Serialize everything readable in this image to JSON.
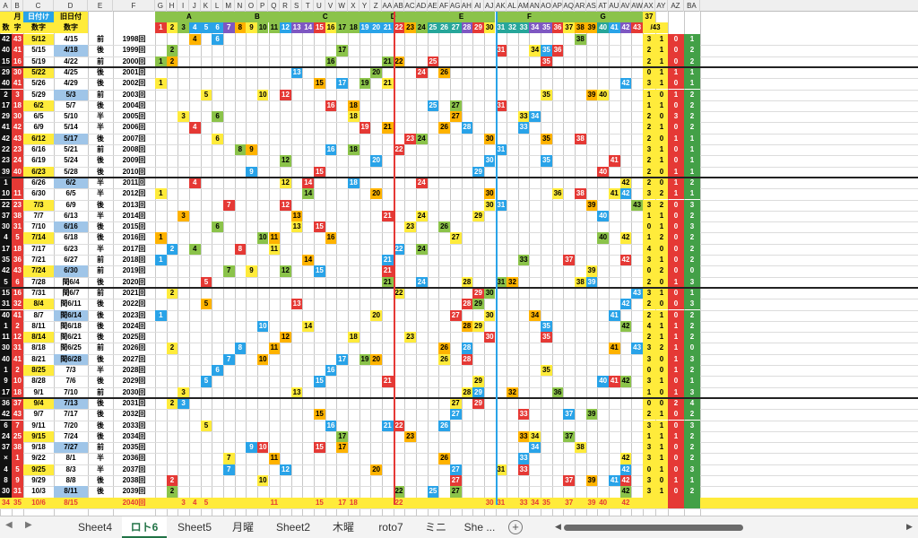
{
  "sheet": {
    "col_letters": [
      "A",
      "B",
      "C",
      "D",
      "E",
      "F",
      "G",
      "H",
      "I",
      "J",
      "K",
      "L",
      "M",
      "N",
      "O",
      "P",
      "Q",
      "R",
      "S",
      "T",
      "U",
      "V",
      "W",
      "X",
      "Y",
      "Z",
      "AA",
      "AB",
      "AC",
      "AD",
      "AE",
      "AF",
      "AG",
      "AH",
      "AI",
      "AJ",
      "AK",
      "AL",
      "AM",
      "AN",
      "AO",
      "AP",
      "AQ",
      "AR",
      "AS",
      "AT",
      "AU",
      "AV",
      "AW",
      "AX",
      "AY",
      "AZ",
      "BA"
    ],
    "header_row1": {
      "month": "月",
      "date": "日付け",
      "old_date": "旧日付",
      "group_A": "A",
      "group_B": "B",
      "group_C": "C",
      "group_D": "D",
      "group_E": "E",
      "group_F": "F",
      "group_G": "G",
      "ay_37": "37"
    },
    "header_row2": {
      "num": "数",
      "char": "字",
      "num_label": "数字",
      "old_num_label": "数字",
      "ay_43": "/43"
    },
    "numbers": [
      "1",
      "2",
      "3",
      "4",
      "5",
      "6",
      "7",
      "8",
      "9",
      "10",
      "11",
      "12",
      "13",
      "14",
      "15",
      "16",
      "17",
      "18",
      "19",
      "20",
      "21",
      "22",
      "23",
      "24",
      "25",
      "26",
      "27",
      "28",
      "29",
      "30",
      "31",
      "32",
      "33",
      "34",
      "35",
      "36",
      "37",
      "38",
      "39",
      "40",
      "41",
      "42",
      "43"
    ],
    "rows": [
      {
        "a": "42",
        "b": "43",
        "date": "5/12",
        "old": "4/15",
        "half": "前",
        "draw": "1998回",
        "cells": {
          "4": "4",
          "6": "6",
          "38": "38"
        },
        "stats": [
          "3",
          "1",
          "0",
          "1"
        ]
      },
      {
        "a": "40",
        "b": "41",
        "date": "5/15",
        "old": "4/18",
        "half": "後",
        "draw": "1999回",
        "cells": {
          "2": "2",
          "17": "17",
          "31": "31",
          "34": "34",
          "35": "35",
          "36": "36"
        },
        "stats": [
          "2",
          "1",
          "0",
          "2"
        ]
      },
      {
        "a": "15",
        "b": "16",
        "date": "5/19",
        "old": "4/22",
        "half": "前",
        "draw": "2000回",
        "cells": {
          "1": "1",
          "2": "2",
          "16": "16",
          "21": "21",
          "22": "22",
          "25": "25",
          "35": "35"
        },
        "stats": [
          "2",
          "1",
          "0",
          "2"
        ]
      },
      {
        "a": "29",
        "b": "30",
        "date": "5/22",
        "old": "4/25",
        "half": "後",
        "draw": "2001回",
        "cells": {
          "13": "13",
          "20": "20",
          "24": "24",
          "26": "26"
        },
        "stats": [
          "0",
          "1",
          "1",
          "1"
        ]
      },
      {
        "a": "40",
        "b": "41",
        "date": "5/26",
        "old": "4/29",
        "half": "後",
        "draw": "2002回",
        "cells": {
          "1": "1",
          "15": "15",
          "17": "17",
          "19": "19",
          "21": "21",
          "42": "42"
        },
        "stats": [
          "3",
          "1",
          "0",
          "1"
        ]
      },
      {
        "a": "2",
        "b": "3",
        "date": "5/29",
        "old": "5/3",
        "half": "前",
        "draw": "2003回",
        "cells": {
          "5": "5",
          "10": "10",
          "12": "12",
          "35": "35",
          "39": "39",
          "40": "40"
        },
        "stats": [
          "1",
          "0",
          "1",
          "2"
        ]
      },
      {
        "a": "17",
        "b": "18",
        "date": "6/2",
        "old": "5/7",
        "half": "後",
        "draw": "2004回",
        "cells": {
          "16": "16",
          "18": "18",
          "25": "25",
          "27": "27",
          "31": "31"
        },
        "stats": [
          "1",
          "1",
          "0",
          "2"
        ]
      },
      {
        "a": "29",
        "b": "30",
        "date": "6/5",
        "old": "5/10",
        "half": "半",
        "draw": "2005回",
        "cells": {
          "3": "3",
          "6": "6",
          "18": "18",
          "27": "27",
          "33": "33",
          "34": "34"
        },
        "stats": [
          "2",
          "0",
          "3",
          "2"
        ]
      },
      {
        "a": "41",
        "b": "42",
        "date": "6/9",
        "old": "5/14",
        "half": "半",
        "draw": "2006回",
        "cells": {
          "4": "4",
          "19": "19",
          "21": "21",
          "26": "26",
          "28": "28",
          "33": "33"
        },
        "stats": [
          "2",
          "1",
          "0",
          "2"
        ]
      },
      {
        "a": "42",
        "b": "43",
        "date": "6/12",
        "old": "5/17",
        "half": "後",
        "draw": "2007回",
        "cells": {
          "6": "6",
          "23": "23",
          "24": "24",
          "30": "30",
          "35": "35",
          "38": "38"
        },
        "stats": [
          "2",
          "0",
          "1",
          "1"
        ]
      },
      {
        "a": "22",
        "b": "23",
        "date": "6/16",
        "old": "5/21",
        "half": "前",
        "draw": "2008回",
        "cells": {
          "8": "8",
          "9": "9",
          "16": "16",
          "18": "18",
          "22": "22",
          "31": "31"
        },
        "stats": [
          "3",
          "1",
          "0",
          "1"
        ]
      },
      {
        "a": "23",
        "b": "24",
        "date": "6/19",
        "old": "5/24",
        "half": "後",
        "draw": "2009回",
        "cells": {
          "12": "12",
          "20": "20",
          "30": "30",
          "35": "35",
          "41": "41"
        },
        "stats": [
          "2",
          "1",
          "0",
          "1"
        ]
      },
      {
        "a": "39",
        "b": "40",
        "date": "6/23",
        "old": "5/28",
        "half": "後",
        "draw": "2010回",
        "cells": {
          "9": "9",
          "15": "15",
          "29": "29",
          "40": "40"
        },
        "stats": [
          "2",
          "0",
          "1",
          "1"
        ]
      },
      {
        "a": "1",
        "b": "",
        "date": "6/26",
        "old": "6/2",
        "half": "半",
        "draw": "2011回",
        "cells": {
          "4": "4",
          "12": "12",
          "14": "14",
          "18": "18",
          "24": "24",
          "42": "42"
        },
        "stats": [
          "2",
          "0",
          "1",
          "2"
        ]
      },
      {
        "a": "10",
        "b": "11",
        "date": "6/30",
        "old": "6/5",
        "half": "半",
        "draw": "2012回",
        "cells": {
          "1": "1",
          "14": "14",
          "20": "20",
          "30": "30",
          "36": "36",
          "38": "38",
          "41": "41",
          "42": "42"
        },
        "stats": [
          "3",
          "2",
          "1",
          "1"
        ]
      },
      {
        "a": "22",
        "b": "23",
        "date": "7/3",
        "old": "6/9",
        "half": "後",
        "draw": "2013回",
        "cells": {
          "7": "7",
          "12": "12",
          "30": "30",
          "31": "31",
          "39": "39",
          "43": "43"
        },
        "stats": [
          "3",
          "2",
          "0",
          "3"
        ]
      },
      {
        "a": "37",
        "b": "38",
        "date": "7/7",
        "old": "6/13",
        "half": "半",
        "draw": "2014回",
        "cells": {
          "3": "3",
          "13": "13",
          "21": "21",
          "24": "24",
          "29": "29",
          "40": "40"
        },
        "stats": [
          "1",
          "1",
          "0",
          "2"
        ]
      },
      {
        "a": "30",
        "b": "31",
        "date": "7/10",
        "old": "6/16",
        "half": "後",
        "draw": "2015回",
        "cells": {
          "6": "6",
          "13": "13",
          "15": "15",
          "23": "23",
          "26": "26"
        },
        "stats": [
          "0",
          "1",
          "0",
          "3"
        ]
      },
      {
        "a": "4",
        "b": "5",
        "date": "7/14",
        "old": "6/18",
        "half": "後",
        "draw": "2016回",
        "cells": {
          "1": "1",
          "10": "10",
          "11": "11",
          "16": "16",
          "27": "27",
          "40": "40",
          "42": "42"
        },
        "stats": [
          "1",
          "2",
          "0",
          "2"
        ]
      },
      {
        "a": "17",
        "b": "18",
        "date": "7/17",
        "old": "6/23",
        "half": "半",
        "draw": "2017回",
        "cells": {
          "2": "2",
          "4": "4",
          "8": "8",
          "11": "11",
          "22": "22",
          "24": "24"
        },
        "stats": [
          "4",
          "0",
          "0",
          "2"
        ]
      },
      {
        "a": "35",
        "b": "36",
        "date": "7/21",
        "old": "6/27",
        "half": "前",
        "draw": "2018回",
        "cells": {
          "1": "1",
          "14": "14",
          "21": "21",
          "33": "33",
          "37": "37",
          "42": "42"
        },
        "stats": [
          "3",
          "1",
          "0",
          "2"
        ]
      },
      {
        "a": "42",
        "b": "43",
        "date": "7/24",
        "old": "6/30",
        "half": "前",
        "draw": "2019回",
        "cells": {
          "7": "7",
          "9": "9",
          "12": "12",
          "15": "15",
          "21": "21",
          "39": "39"
        },
        "stats": [
          "0",
          "2",
          "0",
          "0"
        ]
      },
      {
        "a": "5",
        "b": "6",
        "date": "7/28",
        "old": "閏6/4",
        "half": "後",
        "draw": "2020回",
        "cells": {
          "5": "5",
          "21": "21",
          "24": "24",
          "28": "28",
          "31": "31",
          "32": "32",
          "38": "38",
          "39": "39"
        },
        "stats": [
          "2",
          "0",
          "1",
          "3"
        ]
      },
      {
        "a": "15",
        "b": "16",
        "date": "7/31",
        "old": "閏6/7",
        "half": "前",
        "draw": "2021回",
        "cells": {
          "2": "2",
          "22": "22",
          "29": "29",
          "30": "30",
          "43": "43"
        },
        "stats": [
          "3",
          "1",
          "0",
          "1"
        ]
      },
      {
        "a": "31",
        "b": "32",
        "date": "8/4",
        "old": "閏6/11",
        "half": "後",
        "draw": "2022回",
        "cells": {
          "5": "5",
          "13": "13",
          "28": "28",
          "29": "29",
          "42": "42"
        },
        "stats": [
          "2",
          "0",
          "0",
          "3"
        ]
      },
      {
        "a": "40",
        "b": "41",
        "date": "8/7",
        "old": "閏6/14",
        "half": "後",
        "draw": "2023回",
        "cells": {
          "1": "1",
          "20": "20",
          "27": "27",
          "30": "30",
          "34": "34",
          "41": "41"
        },
        "stats": [
          "2",
          "1",
          "0",
          "2"
        ]
      },
      {
        "a": "1",
        "b": "2",
        "date": "8/11",
        "old": "閏6/18",
        "half": "後",
        "draw": "2024回",
        "cells": {
          "10": "10",
          "14": "14",
          "28": "28",
          "29": "29",
          "35": "35",
          "42": "42"
        },
        "stats": [
          "4",
          "1",
          "1",
          "2"
        ]
      },
      {
        "a": "11",
        "b": "12",
        "date": "8/14",
        "old": "閏6/21",
        "half": "後",
        "draw": "2025回",
        "cells": {
          "12": "12",
          "18": "18",
          "23": "23",
          "30": "30",
          "35": "35"
        },
        "stats": [
          "2",
          "1",
          "1",
          "2"
        ]
      },
      {
        "a": "30",
        "b": "31",
        "date": "8/18",
        "old": "閏6/25",
        "half": "前",
        "draw": "2026回",
        "cells": {
          "2": "2",
          "8": "8",
          "11": "11",
          "26": "26",
          "28": "28",
          "41": "41",
          "43": "43"
        },
        "stats": [
          "3",
          "2",
          "1",
          "0"
        ]
      },
      {
        "a": "40",
        "b": "41",
        "date": "8/21",
        "old": "閏6/28",
        "half": "後",
        "draw": "2027回",
        "cells": {
          "7": "7",
          "10": "10",
          "17": "17",
          "19": "19",
          "20": "20",
          "26": "26",
          "28": "28"
        },
        "stats": [
          "3",
          "0",
          "1",
          "3"
        ]
      },
      {
        "a": "1",
        "b": "2",
        "date": "8/25",
        "old": "7/3",
        "half": "半",
        "draw": "2028回",
        "cells": {
          "6": "6",
          "16": "16",
          "35": "35"
        },
        "stats": [
          "0",
          "0",
          "1",
          "2"
        ]
      },
      {
        "a": "9",
        "b": "10",
        "date": "8/28",
        "old": "7/6",
        "half": "後",
        "draw": "2029回",
        "cells": {
          "5": "5",
          "15": "15",
          "21": "21",
          "29": "29",
          "40": "40",
          "41": "41",
          "42": "42"
        },
        "stats": [
          "3",
          "1",
          "0",
          "1"
        ]
      },
      {
        "a": "17",
        "b": "18",
        "date": "9/1",
        "old": "7/10",
        "half": "前",
        "draw": "2030回",
        "cells": {
          "3": "3",
          "13": "13",
          "28": "28",
          "29": "29",
          "32": "32",
          "36": "36"
        },
        "stats": [
          "1",
          "0",
          "1",
          "3"
        ]
      },
      {
        "a": "36",
        "b": "37",
        "date": "9/4",
        "old": "7/13",
        "half": "後",
        "draw": "2031回",
        "cells": {
          "2": "2",
          "3": "3",
          "27": "27",
          "29": "29"
        },
        "stats": [
          "0",
          "0",
          "2",
          "4"
        ]
      },
      {
        "a": "42",
        "b": "43",
        "date": "9/7",
        "old": "7/17",
        "half": "後",
        "draw": "2032回",
        "cells": {
          "15": "15",
          "27": "27",
          "33": "33",
          "37": "37",
          "39": "39"
        },
        "stats": [
          "2",
          "1",
          "0",
          "2"
        ]
      },
      {
        "a": "6",
        "b": "7",
        "date": "9/11",
        "old": "7/20",
        "half": "後",
        "draw": "2033回",
        "cells": {
          "5": "5",
          "16": "16",
          "21": "21",
          "22": "22",
          "26": "26"
        },
        "stats": [
          "3",
          "1",
          "0",
          "3"
        ]
      },
      {
        "a": "24",
        "b": "25",
        "date": "9/15",
        "old": "7/24",
        "half": "後",
        "draw": "2034回",
        "cells": {
          "17": "17",
          "23": "23",
          "33": "33",
          "34": "34",
          "37": "37"
        },
        "stats": [
          "1",
          "1",
          "1",
          "2"
        ]
      },
      {
        "a": "37",
        "b": "38",
        "date": "9/18",
        "old": "7/27",
        "half": "前",
        "draw": "2035回",
        "cells": {
          "9": "9",
          "10": "10",
          "15": "15",
          "17": "17",
          "34": "34",
          "38": "38"
        },
        "stats": [
          "3",
          "1",
          "0",
          "2"
        ]
      },
      {
        "a": "×",
        "b": "1",
        "date": "9/22",
        "old": "8/1",
        "half": "半",
        "draw": "2036回",
        "cells": {
          "7": "7",
          "11": "11",
          "26": "26",
          "33": "33",
          "42": "42"
        },
        "stats": [
          "3",
          "1",
          "0",
          "2"
        ]
      },
      {
        "a": "4",
        "b": "5",
        "date": "9/25",
        "old": "8/3",
        "half": "半",
        "draw": "2037回",
        "cells": {
          "7": "7",
          "12": "12",
          "20": "20",
          "27": "27",
          "31": "31",
          "33": "33",
          "42": "42"
        },
        "stats": [
          "0",
          "1",
          "0",
          "3"
        ]
      },
      {
        "a": "8",
        "b": "9",
        "date": "9/29",
        "old": "8/8",
        "half": "後",
        "draw": "2038回",
        "cells": {
          "2": "2",
          "10": "10",
          "27": "27",
          "37": "37",
          "39": "39",
          "41": "41",
          "42": "42"
        },
        "stats": [
          "3",
          "0",
          "1",
          "1"
        ]
      },
      {
        "a": "30",
        "b": "31",
        "date": "10/3",
        "old": "8/11",
        "half": "後",
        "draw": "2039回",
        "cells": {
          "2": "2",
          "22": "22",
          "25": "25",
          "27": "27",
          "42": "42"
        },
        "stats": [
          "3",
          "1",
          "0",
          "2"
        ]
      },
      {
        "a": "34",
        "b": "35",
        "date": "10/6",
        "old": "8/15",
        "half": "",
        "draw": "2040回",
        "cells": {
          "3": "3",
          "4": "4",
          "5": "5",
          "11": "11",
          "15": "15",
          "17": "17",
          "18": "18",
          "22": "22",
          "30": "30",
          "31": "31",
          "33": "33",
          "34": "34",
          "35": "35",
          "37": "37",
          "39": "39",
          "40": "40",
          "42": "42"
        },
        "stats": [
          "",
          "",
          "",
          ""
        ]
      }
    ],
    "markers": {
      "ge": "下",
      "up": "上",
      "arrow": "←"
    }
  },
  "tabs": {
    "nav_prev": "◀",
    "nav_next": "▶",
    "items": [
      "Sheet4",
      "ロト6",
      "Sheet5",
      "月曜",
      "Sheet2",
      "木曜",
      "roto7",
      "ミニ",
      "She ..."
    ],
    "active": 1,
    "add": "+"
  },
  "scroll": {
    "left": "◀",
    "right": "▶"
  },
  "colors": {
    "red": "#e53935",
    "yellow": "#ffeb3b",
    "blue": "#29a3e8",
    "green": "#8bc34a",
    "orange": "#ffb300",
    "pink": "#f6dcdc",
    "gray": "#d9d9d9",
    "black": "#111111",
    "purple": "#7e57c2",
    "teal": "#26a69a"
  }
}
